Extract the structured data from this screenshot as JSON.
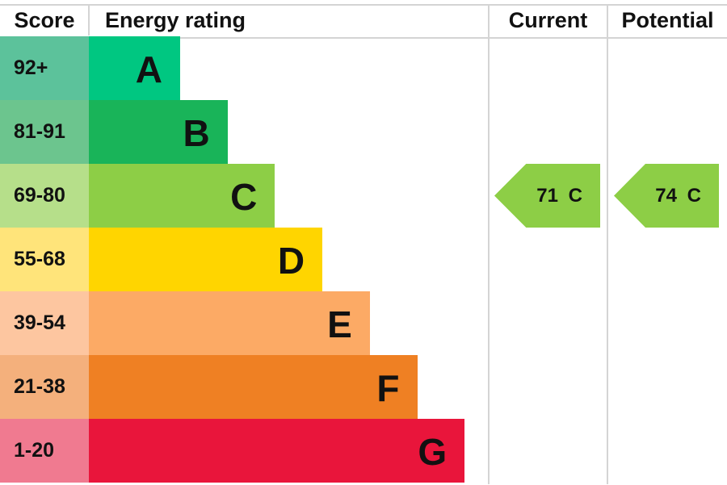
{
  "chart_data": {
    "type": "bar",
    "headers": {
      "score": "Score",
      "rating": "Energy rating",
      "current": "Current",
      "potential": "Potential"
    },
    "bands": [
      {
        "letter": "A",
        "range": "92+",
        "color": "#00c781",
        "score_color": "#5cc29b"
      },
      {
        "letter": "B",
        "range": "81-91",
        "color": "#19b459",
        "score_color": "#6cc58e"
      },
      {
        "letter": "C",
        "range": "69-80",
        "color": "#8dce46",
        "score_color": "#b6df8a"
      },
      {
        "letter": "D",
        "range": "55-68",
        "color": "#ffd500",
        "score_color": "#ffe47a"
      },
      {
        "letter": "E",
        "range": "39-54",
        "color": "#fcaa65",
        "score_color": "#fdc6a0"
      },
      {
        "letter": "F",
        "range": "21-38",
        "color": "#ef8023",
        "score_color": "#f4b07c"
      },
      {
        "letter": "G",
        "range": "1-20",
        "color": "#e9153b",
        "score_color": "#f07a90"
      }
    ],
    "current": {
      "value": 71,
      "band": "C",
      "label": "71 C"
    },
    "potential": {
      "value": 74,
      "band": "C",
      "label": "74 C"
    }
  }
}
